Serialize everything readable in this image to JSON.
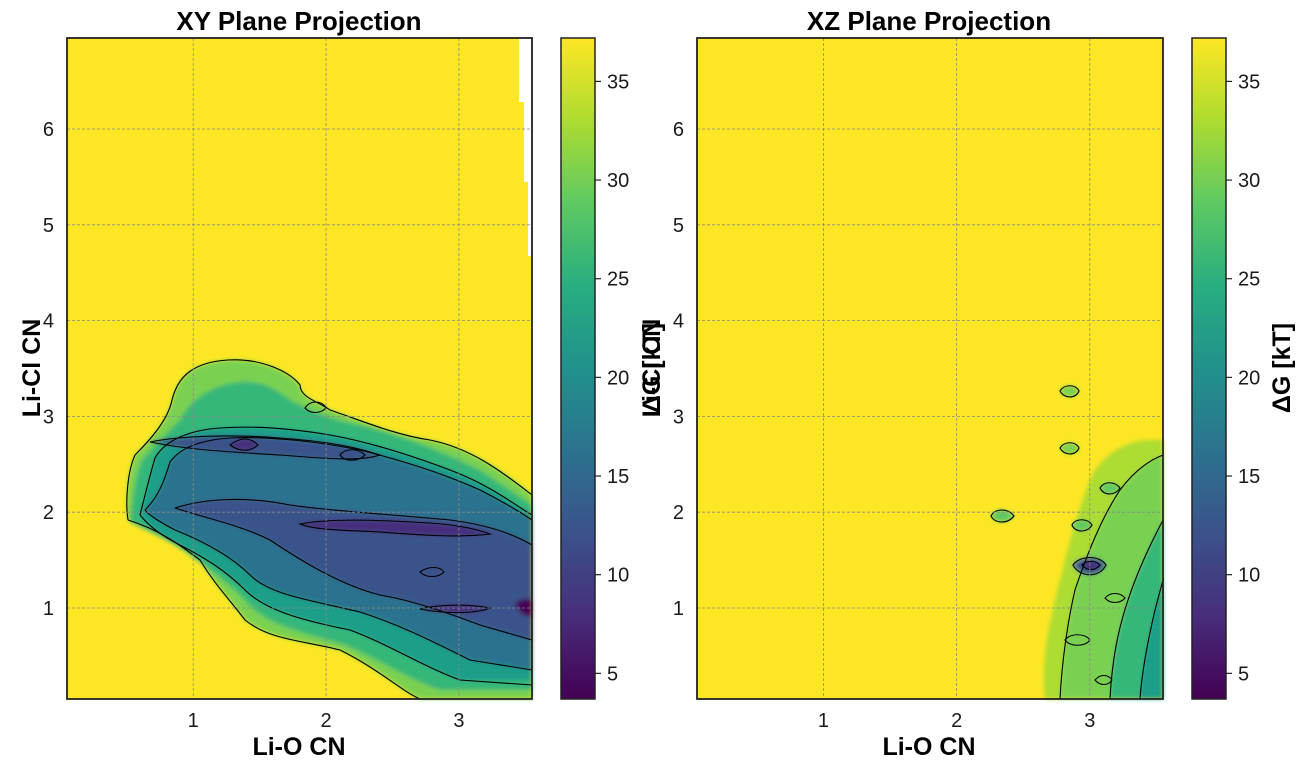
{
  "chart_data": [
    {
      "type": "heatmap",
      "title": "XY Plane Projection",
      "xlabel": "Li-O CN",
      "ylabel": "Li-Cl CN",
      "xlim": [
        0.05,
        3.55
      ],
      "ylim": [
        0.05,
        6.95
      ],
      "xticks": [
        "1",
        "2",
        "3"
      ],
      "yticks": [
        "1",
        "2",
        "3",
        "4",
        "5",
        "6"
      ],
      "grid": true,
      "colormap": "viridis",
      "colorbar": {
        "label": "ΔG [kT]",
        "range": [
          3.7,
          37.2
        ],
        "ticks": [
          "5",
          "10",
          "15",
          "20",
          "25",
          "30",
          "35"
        ]
      },
      "contour_levels_kT": [
        10,
        15,
        20,
        25,
        30,
        35
      ],
      "max_value_kT": 37.2,
      "min_value_kT": 3.7,
      "regions": [
        {
          "x": 1.35,
          "y": 2.72,
          "value": 5
        },
        {
          "x": 2.3,
          "y": 1.85,
          "value": 6
        },
        {
          "x": 3.5,
          "y": 1.0,
          "value": 6
        },
        {
          "x": 2.2,
          "y": 2.65,
          "value": 10
        },
        {
          "x": 1.0,
          "y": 2.3,
          "value": 16
        },
        {
          "x": 0.6,
          "y": 1.95,
          "value": 22
        },
        {
          "x": 2.7,
          "y": 1.3,
          "value": 14
        },
        {
          "x": 3.2,
          "y": 0.3,
          "value": 18
        },
        {
          "x": 1.3,
          "y": 3.2,
          "value": 30
        },
        {
          "x": 3.0,
          "y": 5.0,
          "value": 37.2
        }
      ]
    },
    {
      "type": "heatmap",
      "title": "XZ Plane Projection",
      "xlabel": "Li-O CN",
      "ylabel": "",
      "xlim": [
        0.05,
        3.55
      ],
      "ylim": [
        0.05,
        6.95
      ],
      "xticks": [
        "1",
        "2",
        "3"
      ],
      "yticks": [
        "1",
        "2",
        "3",
        "4",
        "5",
        "6"
      ],
      "grid": true,
      "colormap": "viridis",
      "colorbar": {
        "label": "ΔG [kT]",
        "range": [
          3.7,
          37.2
        ],
        "ticks": [
          "5",
          "10",
          "15",
          "20",
          "25",
          "30",
          "35"
        ]
      },
      "contour_levels_kT": [
        10,
        15,
        20,
        25,
        30,
        35
      ],
      "max_value_kT": 37.2,
      "min_value_kT": 3.7,
      "regions": [
        {
          "x": 2.88,
          "y": 1.45,
          "value": 12
        },
        {
          "x": 2.87,
          "y": 3.25,
          "value": 28
        },
        {
          "x": 2.87,
          "y": 2.65,
          "value": 27
        },
        {
          "x": 2.33,
          "y": 1.95,
          "value": 28
        },
        {
          "x": 2.95,
          "y": 1.85,
          "value": 26
        },
        {
          "x": 3.15,
          "y": 2.25,
          "value": 28
        },
        {
          "x": 3.5,
          "y": 0.6,
          "value": 18
        },
        {
          "x": 3.2,
          "y": 1.0,
          "value": 26
        }
      ]
    }
  ]
}
